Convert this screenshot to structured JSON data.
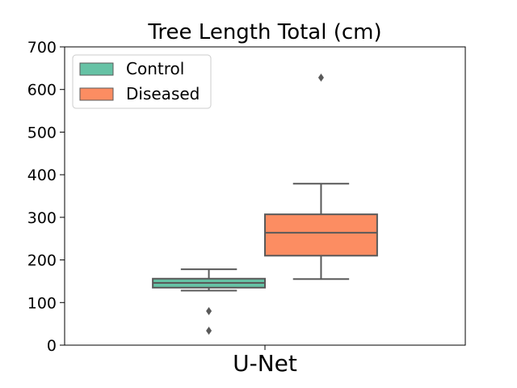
{
  "chart_data": {
    "type": "box",
    "title": "Tree Length Total (cm)",
    "xlabel": "",
    "ylabel": "",
    "categories": [
      "U-Net"
    ],
    "ylim": [
      0,
      700
    ],
    "yticks": [
      0,
      100,
      200,
      300,
      400,
      500,
      600,
      700
    ],
    "grid": false,
    "legend_position": "top-left",
    "series": [
      {
        "name": "Control",
        "color": "#66c2a5",
        "boxes": [
          {
            "category": "U-Net",
            "whisker_low": 128,
            "q1": 135,
            "median": 146,
            "q3": 156,
            "whisker_high": 178,
            "outliers": [
              80,
              34
            ]
          }
        ]
      },
      {
        "name": "Diseased",
        "color": "#fc8d62",
        "boxes": [
          {
            "category": "U-Net",
            "whisker_low": 155,
            "q1": 210,
            "median": 264,
            "q3": 307,
            "whisker_high": 379,
            "outliers": [
              628
            ]
          }
        ]
      }
    ]
  }
}
